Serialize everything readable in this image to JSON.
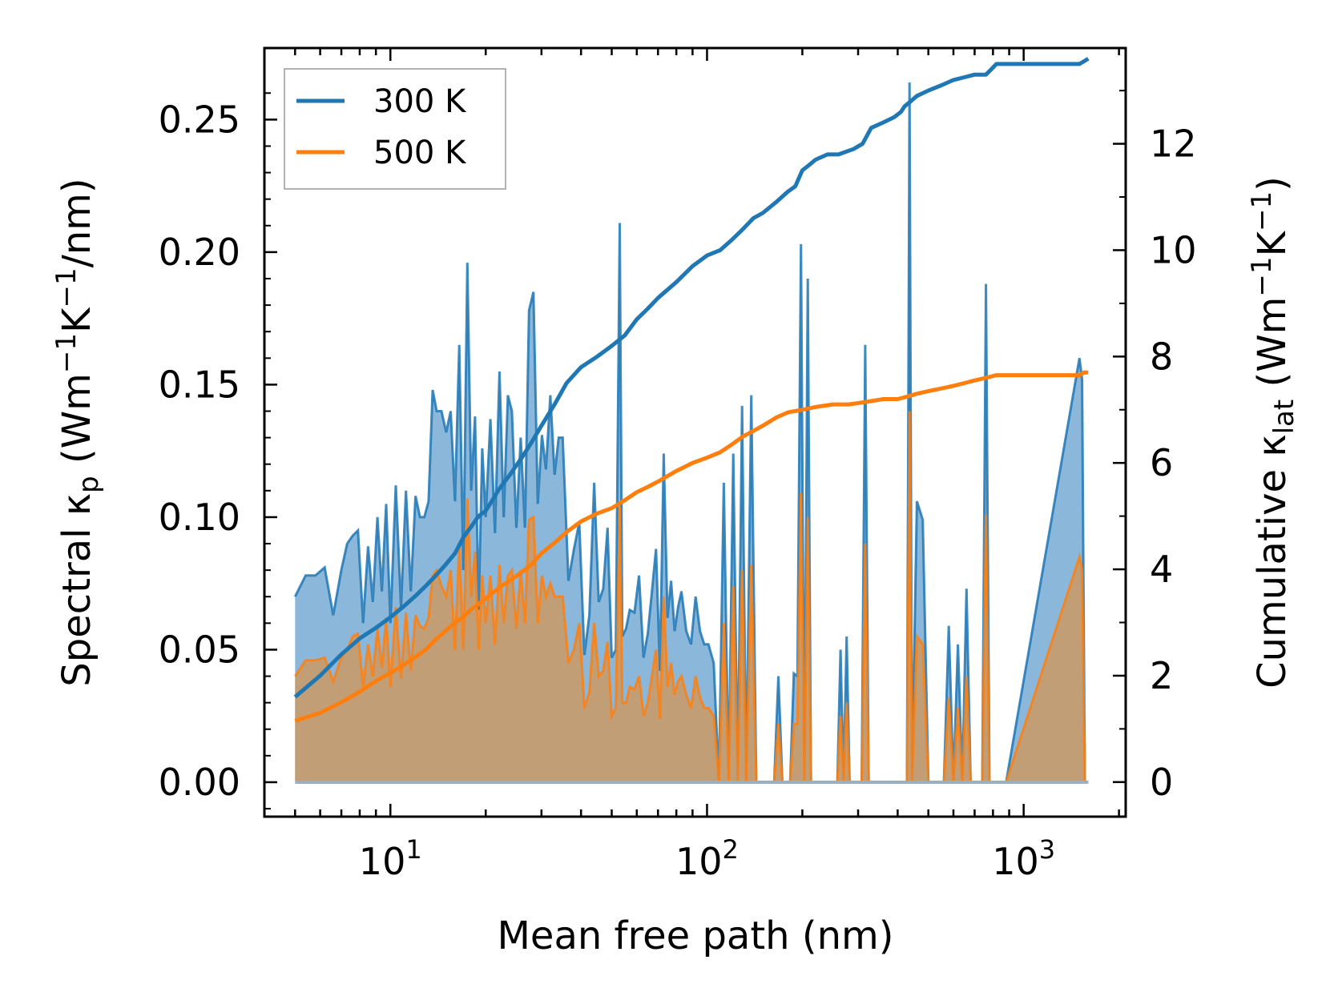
{
  "chart_data": {
    "type": "area",
    "xscale": "log",
    "xlabel": "Mean free path (nm)",
    "ylabel_left": {
      "prefix": "Spectral κ",
      "sub": "p",
      "units_open": " (Wm",
      "exp1": "−1",
      "mid": "K",
      "exp2": "−1",
      "units_close": "/nm)"
    },
    "ylabel_right": {
      "prefix": "Cumulative κ",
      "sub": "lat",
      "units_open": " (Wm",
      "exp1": "−1",
      "mid": "K",
      "exp2": "−1",
      "units_close": ")"
    },
    "xlim": [
      4.0,
      2100
    ],
    "ylim_left": [
      -0.013,
      0.277
    ],
    "ylim_right": [
      -0.65,
      13.8
    ],
    "x_ticks": [
      {
        "value": 10,
        "base": "10",
        "exp": "1"
      },
      {
        "value": 100,
        "base": "10",
        "exp": "2"
      },
      {
        "value": 1000,
        "base": "10",
        "exp": "3"
      }
    ],
    "y_left_ticks": [
      "0.00",
      "0.05",
      "0.10",
      "0.15",
      "0.20",
      "0.25"
    ],
    "y_right_ticks": [
      "0",
      "2",
      "4",
      "6",
      "8",
      "10",
      "12"
    ],
    "legend": {
      "position": "top-left",
      "entries": [
        "300 K",
        "500 K"
      ]
    },
    "colors": {
      "s300": "#1f77b4",
      "s500": "#ff7f0e",
      "fill300": "#8ab7da",
      "fill500": "#c69b6e"
    },
    "series": [
      {
        "name": "300 K",
        "spectral_x": [
          5.0,
          5.4,
          5.8,
          6.2,
          6.6,
          7.0,
          7.3,
          7.6,
          7.9,
          8.2,
          8.5,
          8.8,
          9.1,
          9.4,
          9.7,
          10.0,
          10.4,
          10.8,
          11.2,
          11.6,
          12.0,
          12.4,
          12.8,
          13.2,
          13.6,
          14.0,
          14.5,
          15.0,
          15.5,
          16.0,
          16.5,
          17.0,
          17.5,
          18.0,
          18.5,
          19.0,
          19.5,
          20.0,
          20.7,
          21.4,
          22.1,
          22.8,
          23.5,
          24.2,
          25.0,
          25.8,
          26.6,
          27.4,
          28.3,
          29.2,
          30.1,
          31.0,
          32.0,
          33.0,
          34.0,
          35.0,
          36.5,
          38.0,
          39.5,
          41.0,
          42.5,
          44.0,
          45.5,
          47.0,
          48.5,
          50.0,
          51.5,
          53.0,
          54.0,
          55.5,
          57.0,
          59.0,
          61.0,
          63.0,
          65.0,
          67.0,
          69.0,
          71.0,
          73.0,
          75.0,
          77.0,
          79.0,
          81.0,
          83.0,
          86.0,
          89.0,
          92.0,
          95.0,
          98.0,
          101.0,
          105.0,
          109.0,
          113.0,
          117.0,
          121.0,
          125.0,
          129.0,
          133.0,
          138.0,
          143.0,
          148.0,
          153.0,
          158.0,
          163.0,
          168.0,
          173.0,
          178.0,
          183.0,
          188.0,
          193.0,
          198.0,
          203.0,
          208.0,
          213.0,
          218.0,
          223.0,
          228.0,
          234.0,
          240.0,
          246.0,
          252.0,
          258.0,
          264.0,
          270.0,
          276.0,
          282.0,
          288.0,
          294.0,
          300.0,
          308.0,
          316.0,
          324.0,
          332.0,
          340.0,
          348.0,
          356.0,
          364.0,
          372.0,
          380.0,
          388.0,
          396.0,
          404.0,
          412.0,
          420.0,
          428.0,
          436.0,
          444.0,
          460.0,
          480.0,
          500.0,
          520.0,
          540.0,
          560.0,
          580.0,
          600.0,
          620.0,
          640.0,
          660.0,
          680.0,
          700.0,
          720.0,
          740.0,
          760.0,
          780.0,
          800.0,
          820.0,
          840.0,
          860.0,
          880.0,
          1500.0,
          1530.0,
          1560.0,
          1590.0,
          1600.0
        ],
        "spectral_y": [
          0.07,
          0.078,
          0.078,
          0.081,
          0.063,
          0.08,
          0.09,
          0.093,
          0.095,
          0.06,
          0.089,
          0.068,
          0.1,
          0.072,
          0.105,
          0.06,
          0.112,
          0.066,
          0.11,
          0.072,
          0.108,
          0.1,
          0.1,
          0.106,
          0.148,
          0.14,
          0.14,
          0.132,
          0.14,
          0.106,
          0.165,
          0.08,
          0.196,
          0.11,
          0.138,
          0.065,
          0.126,
          0.1,
          0.137,
          0.094,
          0.155,
          0.1,
          0.146,
          0.14,
          0.096,
          0.13,
          0.096,
          0.178,
          0.185,
          0.105,
          0.131,
          0.118,
          0.146,
          0.116,
          0.13,
          0.13,
          0.076,
          0.088,
          0.098,
          0.048,
          0.063,
          0.113,
          0.068,
          0.073,
          0.096,
          0.047,
          0.05,
          0.211,
          0.055,
          0.058,
          0.065,
          0.064,
          0.078,
          0.047,
          0.056,
          0.072,
          0.088,
          0.042,
          0.124,
          0.062,
          0.076,
          0.057,
          0.066,
          0.072,
          0.057,
          0.052,
          0.07,
          0.057,
          0.052,
          0.052,
          0.045,
          0.0,
          0.113,
          0.0,
          0.124,
          0.0,
          0.142,
          0.0,
          0.146,
          0.0,
          0.0,
          0.0,
          0.0,
          0.0,
          0.04,
          0.0,
          0.0,
          0.0,
          0.041,
          0.04,
          0.203,
          0.0,
          0.19,
          0.0,
          0.0,
          0.0,
          0.0,
          0.0,
          0.0,
          0.0,
          0.0,
          0.0,
          0.05,
          0.0,
          0.055,
          0.0,
          0.0,
          0.0,
          0.0,
          0.0,
          0.165,
          0.0,
          0.0,
          0.0,
          0.0,
          0.0,
          0.0,
          0.0,
          0.0,
          0.0,
          0.0,
          0.0,
          0.0,
          0.0,
          0.0,
          0.264,
          0.0,
          0.106,
          0.099,
          0.0,
          0.0,
          0.0,
          0.0,
          0.059,
          0.0,
          0.052,
          0.0,
          0.073,
          0.0,
          0.0,
          0.0,
          0.0,
          0.188,
          0.0,
          0.0,
          0.0,
          0.0,
          0.0,
          0.0,
          0.16,
          0.152,
          0.0
        ],
        "cumulative_x": [
          5.0,
          6.0,
          7.0,
          8.0,
          9.0,
          10.0,
          11.0,
          12.0,
          13.0,
          14.0,
          15.0,
          16.0,
          17.0,
          18.0,
          19.0,
          20.0,
          21.0,
          22.0,
          24.0,
          26.0,
          28.0,
          30.0,
          33.0,
          36.0,
          40.0,
          45.0,
          50.0,
          55.0,
          60.0,
          65.0,
          70.0,
          80.0,
          90.0,
          100.0,
          110.0,
          120.0,
          130.0,
          140.0,
          150.0,
          165.0,
          180.0,
          190.0,
          200.0,
          210.0,
          220.0,
          240.0,
          260.0,
          290.0,
          310.0,
          330.0,
          360.0,
          390.0,
          410.0,
          420.0,
          440.0,
          460.0,
          500.0,
          550.0,
          600.0,
          650.0,
          700.0,
          760.0,
          790.0,
          820.0,
          1450.0,
          1500.0,
          1550.0,
          1600.0
        ],
        "cumulative_y": [
          1.6,
          2.0,
          2.4,
          2.7,
          2.9,
          3.1,
          3.3,
          3.5,
          3.7,
          3.9,
          4.1,
          4.3,
          4.6,
          4.8,
          5.0,
          5.1,
          5.3,
          5.5,
          5.8,
          6.1,
          6.4,
          6.7,
          7.1,
          7.5,
          7.8,
          8.0,
          8.2,
          8.4,
          8.7,
          8.9,
          9.1,
          9.4,
          9.7,
          9.9,
          10.0,
          10.2,
          10.4,
          10.6,
          10.7,
          10.9,
          11.1,
          11.2,
          11.5,
          11.6,
          11.7,
          11.8,
          11.8,
          11.9,
          12.0,
          12.3,
          12.4,
          12.5,
          12.6,
          12.7,
          12.8,
          12.9,
          13.0,
          13.1,
          13.2,
          13.25,
          13.3,
          13.3,
          13.4,
          13.5,
          13.5,
          13.5,
          13.55,
          13.6
        ]
      },
      {
        "name": "500 K",
        "spectral_x": [
          5.0,
          5.4,
          5.8,
          6.2,
          6.6,
          7.0,
          7.3,
          7.6,
          7.9,
          8.2,
          8.5,
          8.8,
          9.1,
          9.4,
          9.7,
          10.0,
          10.4,
          10.8,
          11.2,
          11.6,
          12.0,
          12.4,
          12.8,
          13.2,
          13.6,
          14.0,
          14.5,
          15.0,
          15.5,
          16.0,
          16.5,
          17.0,
          17.5,
          18.0,
          18.5,
          19.0,
          19.5,
          20.0,
          20.7,
          21.4,
          22.1,
          22.8,
          23.5,
          24.2,
          25.0,
          25.8,
          26.6,
          27.4,
          28.3,
          29.2,
          30.1,
          31.0,
          32.0,
          33.0,
          34.0,
          35.0,
          36.5,
          38.0,
          39.5,
          41.0,
          42.5,
          44.0,
          45.5,
          47.0,
          48.5,
          50.0,
          51.5,
          53.0,
          54.0,
          55.5,
          57.0,
          59.0,
          61.0,
          63.0,
          65.0,
          67.0,
          69.0,
          71.0,
          73.0,
          75.0,
          77.0,
          79.0,
          81.0,
          83.0,
          86.0,
          89.0,
          92.0,
          95.0,
          98.0,
          101.0,
          105.0,
          109.0,
          113.0,
          117.0,
          121.0,
          125.0,
          129.0,
          133.0,
          138.0,
          143.0,
          148.0,
          153.0,
          158.0,
          163.0,
          168.0,
          173.0,
          178.0,
          183.0,
          188.0,
          193.0,
          198.0,
          203.0,
          208.0,
          213.0,
          218.0,
          223.0,
          228.0,
          234.0,
          240.0,
          246.0,
          252.0,
          258.0,
          264.0,
          270.0,
          276.0,
          282.0,
          288.0,
          294.0,
          300.0,
          308.0,
          316.0,
          324.0,
          332.0,
          340.0,
          348.0,
          356.0,
          364.0,
          372.0,
          380.0,
          388.0,
          396.0,
          404.0,
          412.0,
          420.0,
          428.0,
          436.0,
          444.0,
          460.0,
          480.0,
          500.0,
          520.0,
          540.0,
          560.0,
          580.0,
          600.0,
          620.0,
          640.0,
          660.0,
          680.0,
          700.0,
          720.0,
          740.0,
          760.0,
          780.0,
          800.0,
          820.0,
          840.0,
          860.0,
          880.0,
          1500.0,
          1530.0,
          1560.0,
          1590.0,
          1600.0
        ],
        "spectral_y": [
          0.04,
          0.046,
          0.046,
          0.047,
          0.038,
          0.047,
          0.05,
          0.055,
          0.056,
          0.036,
          0.052,
          0.04,
          0.058,
          0.043,
          0.062,
          0.036,
          0.066,
          0.039,
          0.064,
          0.042,
          0.063,
          0.059,
          0.058,
          0.062,
          0.078,
          0.08,
          0.074,
          0.07,
          0.08,
          0.05,
          0.09,
          0.05,
          0.107,
          0.07,
          0.087,
          0.05,
          0.078,
          0.06,
          0.078,
          0.052,
          0.082,
          0.06,
          0.078,
          0.08,
          0.058,
          0.08,
          0.06,
          0.099,
          0.1,
          0.06,
          0.078,
          0.07,
          0.075,
          0.07,
          0.07,
          0.07,
          0.045,
          0.05,
          0.06,
          0.028,
          0.034,
          0.06,
          0.04,
          0.042,
          0.053,
          0.025,
          0.028,
          0.104,
          0.03,
          0.03,
          0.036,
          0.035,
          0.04,
          0.025,
          0.03,
          0.04,
          0.05,
          0.024,
          0.07,
          0.036,
          0.045,
          0.033,
          0.038,
          0.04,
          0.033,
          0.028,
          0.04,
          0.032,
          0.028,
          0.028,
          0.025,
          0.0,
          0.06,
          0.0,
          0.074,
          0.0,
          0.08,
          0.0,
          0.082,
          0.0,
          0.0,
          0.0,
          0.0,
          0.0,
          0.022,
          0.0,
          0.0,
          0.0,
          0.022,
          0.022,
          0.109,
          0.0,
          0.1,
          0.0,
          0.0,
          0.0,
          0.0,
          0.0,
          0.0,
          0.0,
          0.0,
          0.0,
          0.025,
          0.0,
          0.03,
          0.0,
          0.0,
          0.0,
          0.0,
          0.0,
          0.09,
          0.0,
          0.0,
          0.0,
          0.0,
          0.0,
          0.0,
          0.0,
          0.0,
          0.0,
          0.0,
          0.0,
          0.0,
          0.0,
          0.0,
          0.14,
          0.0,
          0.055,
          0.052,
          0.0,
          0.0,
          0.0,
          0.0,
          0.032,
          0.0,
          0.028,
          0.0,
          0.04,
          0.0,
          0.0,
          0.0,
          0.0,
          0.101,
          0.0,
          0.0,
          0.0,
          0.0,
          0.0,
          0.0,
          0.085,
          0.08,
          0.0
        ],
        "cumulative_x": [
          5.0,
          6.0,
          7.0,
          8.0,
          9.0,
          10.0,
          11.0,
          12.0,
          13.0,
          14.0,
          15.0,
          16.0,
          17.0,
          18.0,
          19.0,
          20.0,
          22.0,
          24.0,
          26.0,
          28.0,
          30.0,
          33.0,
          36.0,
          40.0,
          45.0,
          50.0,
          55.0,
          60.0,
          65.0,
          70.0,
          80.0,
          90.0,
          100.0,
          110.0,
          120.0,
          130.0,
          140.0,
          150.0,
          165.0,
          180.0,
          200.0,
          220.0,
          250.0,
          280.0,
          320.0,
          360.0,
          400.0,
          430.0,
          460.0,
          500.0,
          550.0,
          600.0,
          650.0,
          700.0,
          760.0,
          820.0,
          1000.0,
          1450.0,
          1500.0,
          1550.0,
          1600.0
        ],
        "cumulative_y": [
          1.15,
          1.3,
          1.5,
          1.7,
          1.9,
          2.05,
          2.2,
          2.35,
          2.5,
          2.7,
          2.85,
          3.0,
          3.1,
          3.25,
          3.35,
          3.45,
          3.65,
          3.8,
          3.95,
          4.1,
          4.3,
          4.5,
          4.7,
          4.9,
          5.05,
          5.15,
          5.3,
          5.45,
          5.55,
          5.65,
          5.85,
          6.0,
          6.1,
          6.2,
          6.35,
          6.5,
          6.6,
          6.7,
          6.85,
          6.95,
          7.0,
          7.05,
          7.1,
          7.1,
          7.15,
          7.2,
          7.2,
          7.25,
          7.3,
          7.35,
          7.4,
          7.45,
          7.5,
          7.55,
          7.6,
          7.65,
          7.65,
          7.65,
          7.65,
          7.7,
          7.7
        ]
      }
    ]
  }
}
